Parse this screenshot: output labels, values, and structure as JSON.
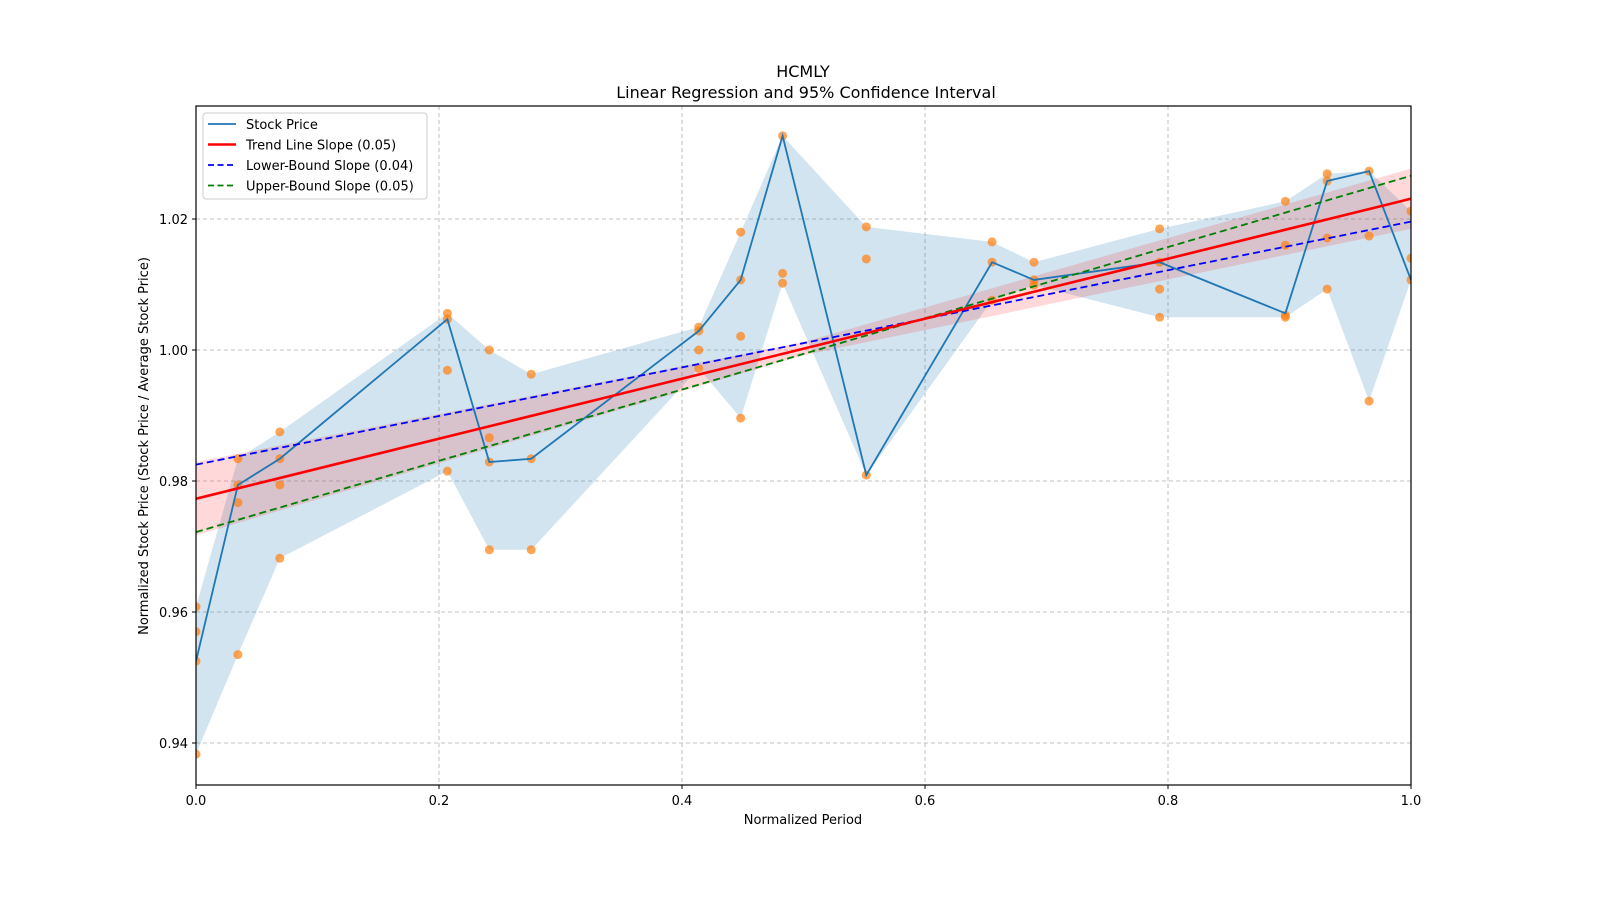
{
  "chart_data": {
    "type": "line",
    "title": "HCMLY",
    "subtitle": "Linear Regression and 95% Confidence Interval",
    "xlabel": "Normalized Period",
    "ylabel": "Normalized Stock Price (Stock Price / Average Stock Price)",
    "xlim": [
      0.0,
      1.0
    ],
    "ylim": [
      0.9335,
      1.0375
    ],
    "xticks": [
      "0.0",
      "0.2",
      "0.4",
      "0.6",
      "0.8",
      "1.0"
    ],
    "xtick_values": [
      0.0,
      0.2,
      0.4,
      0.6,
      0.8,
      1.0
    ],
    "yticks": [
      "0.94",
      "0.96",
      "0.98",
      "1.00",
      "1.02"
    ],
    "ytick_values": [
      0.94,
      0.96,
      0.98,
      1.0,
      1.02
    ],
    "grid": true,
    "legend_placement": "top-left",
    "legend": [
      {
        "label": "Stock Price",
        "color": "#1f77b4",
        "style": "solid"
      },
      {
        "label": "Trend Line Slope (0.05)",
        "color": "#ff0000",
        "style": "solid"
      },
      {
        "label": "Lower-Bound Slope (0.04)",
        "color": "#0000ff",
        "style": "dashed"
      },
      {
        "label": "Upper-Bound Slope (0.05)",
        "color": "#008000",
        "style": "dashed"
      }
    ],
    "stock_price": {
      "name": "Stock Price",
      "color": "#1f77b4",
      "x": [
        0.0,
        0.0345,
        0.069,
        0.2069,
        0.2414,
        0.2759,
        0.4138,
        0.4483,
        0.4828,
        0.5517,
        0.6552,
        0.6897,
        0.7931,
        0.8966,
        0.931,
        0.9655,
        1.0
      ],
      "y": [
        0.9525,
        0.9794,
        0.9834,
        1.0047,
        0.9829,
        0.9834,
        1.0029,
        1.0107,
        1.0327,
        0.9809,
        1.0134,
        1.0107,
        1.0134,
        1.0056,
        1.0258,
        1.0273,
        1.0107
      ],
      "band_upper": [
        0.9608,
        0.9834,
        0.9875,
        1.0056,
        1.0,
        0.9963,
        1.0035,
        1.018,
        1.0327,
        1.0188,
        1.0165,
        1.0134,
        1.0185,
        1.0227,
        1.0269,
        1.0273,
        1.0212
      ],
      "band_lower": [
        0.9383,
        0.9535,
        0.9682,
        0.9815,
        0.9695,
        0.9695,
        0.9972,
        0.9896,
        1.0102,
        0.9809,
        1.0076,
        1.0099,
        1.005,
        1.005,
        1.0093,
        0.9922,
        1.0107
      ]
    },
    "scatter": {
      "name": "Observations",
      "color": "#ff7f0e",
      "points": [
        [
          0.0,
          0.9608
        ],
        [
          0.0,
          0.957
        ],
        [
          0.0,
          0.9525
        ],
        [
          0.0,
          0.9383
        ],
        [
          0.0345,
          0.9834
        ],
        [
          0.0345,
          0.9794
        ],
        [
          0.0345,
          0.9767
        ],
        [
          0.0345,
          0.9535
        ],
        [
          0.069,
          0.9875
        ],
        [
          0.069,
          0.9834
        ],
        [
          0.069,
          0.9794
        ],
        [
          0.069,
          0.9682
        ],
        [
          0.2069,
          1.0056
        ],
        [
          0.2069,
          1.0047
        ],
        [
          0.2069,
          0.9969
        ],
        [
          0.2069,
          0.9815
        ],
        [
          0.2414,
          1.0
        ],
        [
          0.2414,
          0.9866
        ],
        [
          0.2414,
          0.9829
        ],
        [
          0.2414,
          0.9695
        ],
        [
          0.2759,
          0.9963
        ],
        [
          0.2759,
          0.9834
        ],
        [
          0.2759,
          0.9695
        ],
        [
          0.4138,
          1.0035
        ],
        [
          0.4138,
          1.0029
        ],
        [
          0.4138,
          1.0
        ],
        [
          0.4138,
          0.9972
        ],
        [
          0.4483,
          1.018
        ],
        [
          0.4483,
          1.0107
        ],
        [
          0.4483,
          1.0021
        ],
        [
          0.4483,
          0.9896
        ],
        [
          0.4828,
          1.0327
        ],
        [
          0.4828,
          1.0117
        ],
        [
          0.4828,
          1.0102
        ],
        [
          0.5517,
          1.0188
        ],
        [
          0.5517,
          1.0139
        ],
        [
          0.5517,
          0.9809
        ],
        [
          0.6552,
          1.0165
        ],
        [
          0.6552,
          1.0134
        ],
        [
          0.6552,
          1.0076
        ],
        [
          0.6897,
          1.0134
        ],
        [
          0.6897,
          1.0107
        ],
        [
          0.6897,
          1.0099
        ],
        [
          0.7931,
          1.0185
        ],
        [
          0.7931,
          1.0134
        ],
        [
          0.7931,
          1.0093
        ],
        [
          0.7931,
          1.005
        ],
        [
          0.8966,
          1.0227
        ],
        [
          0.8966,
          1.016
        ],
        [
          0.8966,
          1.0053
        ],
        [
          0.8966,
          1.005
        ],
        [
          0.931,
          1.0269
        ],
        [
          0.931,
          1.0258
        ],
        [
          0.931,
          1.0171
        ],
        [
          0.931,
          1.0093
        ],
        [
          0.9655,
          1.0273
        ],
        [
          0.9655,
          1.0174
        ],
        [
          0.9655,
          0.9922
        ],
        [
          1.0,
          1.0212
        ],
        [
          1.0,
          1.014
        ],
        [
          1.0,
          1.0107
        ]
      ]
    },
    "trend_line": {
      "name": "Trend Line Slope (0.05)",
      "color": "#ff0000",
      "x": [
        0.0,
        1.0
      ],
      "y": [
        0.9773,
        1.0231
      ]
    },
    "lower_bound": {
      "name": "Lower-Bound Slope (0.04)",
      "color": "#0000ff",
      "x": [
        0.0,
        1.0
      ],
      "y": [
        0.9825,
        1.0196
      ]
    },
    "upper_bound": {
      "name": "Upper-Bound Slope (0.05)",
      "color": "#008000",
      "x": [
        0.0,
        1.0
      ],
      "y": [
        0.9722,
        1.0266
      ]
    },
    "confidence_band": {
      "color": "#ff0000",
      "x": [
        0.0,
        0.5,
        1.0
      ],
      "lower": [
        0.9717,
        0.9992,
        1.0185
      ],
      "upper": [
        0.9829,
        1.0012,
        1.0277
      ]
    }
  }
}
